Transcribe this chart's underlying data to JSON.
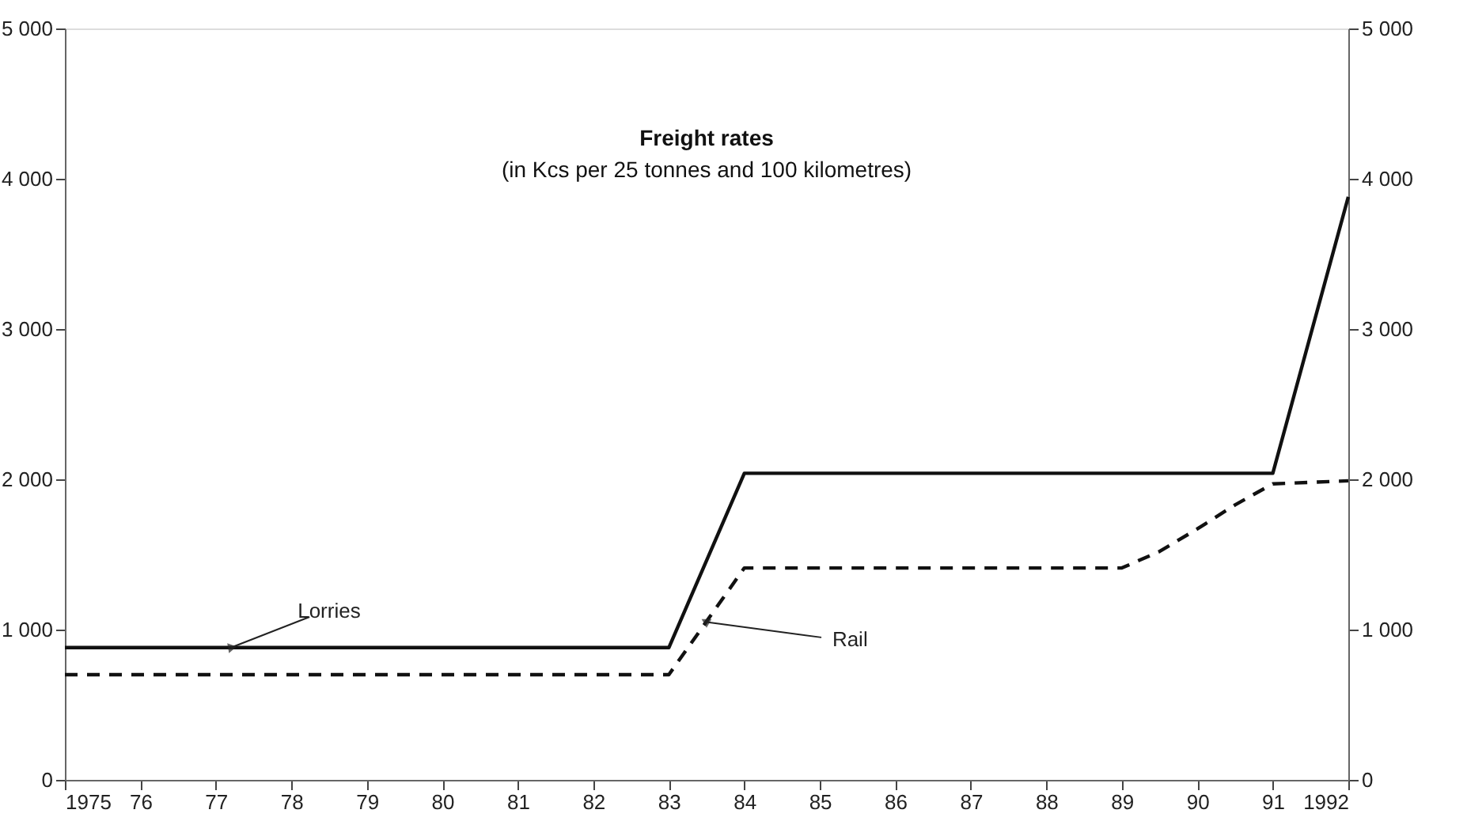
{
  "chart_data": {
    "type": "line",
    "title": "Freight rates",
    "subtitle": "(in Kcs per 25 tonnes and 100 kilometres)",
    "xlim": [
      1975,
      1992
    ],
    "xticks": [
      1975,
      {
        "value": 1976,
        "label": "76"
      },
      {
        "value": 1977,
        "label": "77"
      },
      {
        "value": 1978,
        "label": "78"
      },
      {
        "value": 1979,
        "label": "79"
      },
      {
        "value": 1980,
        "label": "80"
      },
      {
        "value": 1981,
        "label": "81"
      },
      {
        "value": 1982,
        "label": "82"
      },
      {
        "value": 1983,
        "label": "83"
      },
      {
        "value": 1984,
        "label": "84"
      },
      {
        "value": 1985,
        "label": "85"
      },
      {
        "value": 1986,
        "label": "86"
      },
      {
        "value": 1987,
        "label": "87"
      },
      {
        "value": 1988,
        "label": "88"
      },
      {
        "value": 1989,
        "label": "89"
      },
      {
        "value": 1990,
        "label": "90"
      },
      {
        "value": 1991,
        "label": "91"
      },
      1992
    ],
    "ylim": [
      0,
      5000
    ],
    "yticks": [
      0,
      {
        "value": 1000,
        "label": "1 000"
      },
      {
        "value": 2000,
        "label": "2 000"
      },
      {
        "value": 3000,
        "label": "3 000"
      },
      {
        "value": 4000,
        "label": "4 000"
      },
      {
        "value": 5000,
        "label": "5 000"
      }
    ],
    "y2lim": [
      0,
      5000
    ],
    "y2ticks": [
      0,
      {
        "value": 1000,
        "label": "1 000"
      },
      {
        "value": 2000,
        "label": "2 000"
      },
      {
        "value": 3000,
        "label": "3 000"
      },
      {
        "value": 4000,
        "label": "4 000"
      },
      {
        "value": 5000,
        "label": "5 000"
      }
    ],
    "grid": false,
    "marker": "none",
    "series": [
      {
        "color": "#111111",
        "line_style": "solid",
        "x": [
          1975,
          1983,
          1984,
          1991,
          1992
        ],
        "values": [
          880,
          880,
          2040,
          2040,
          3880
        ]
      },
      {
        "color": "#111111",
        "line_style": "dashed",
        "x": [
          1975,
          1983,
          1984,
          1989,
          1989.5,
          1990,
          1990.5,
          1991,
          1992
        ],
        "values": [
          700,
          700,
          1410,
          1410,
          1520,
          1670,
          1830,
          1970,
          1990
        ]
      }
    ],
    "annotations": [
      {
        "text": "Lorries",
        "x": 1977.2,
        "y": 880
      },
      {
        "text": "Rail",
        "x": 1983.5,
        "y": 1050
      }
    ]
  }
}
